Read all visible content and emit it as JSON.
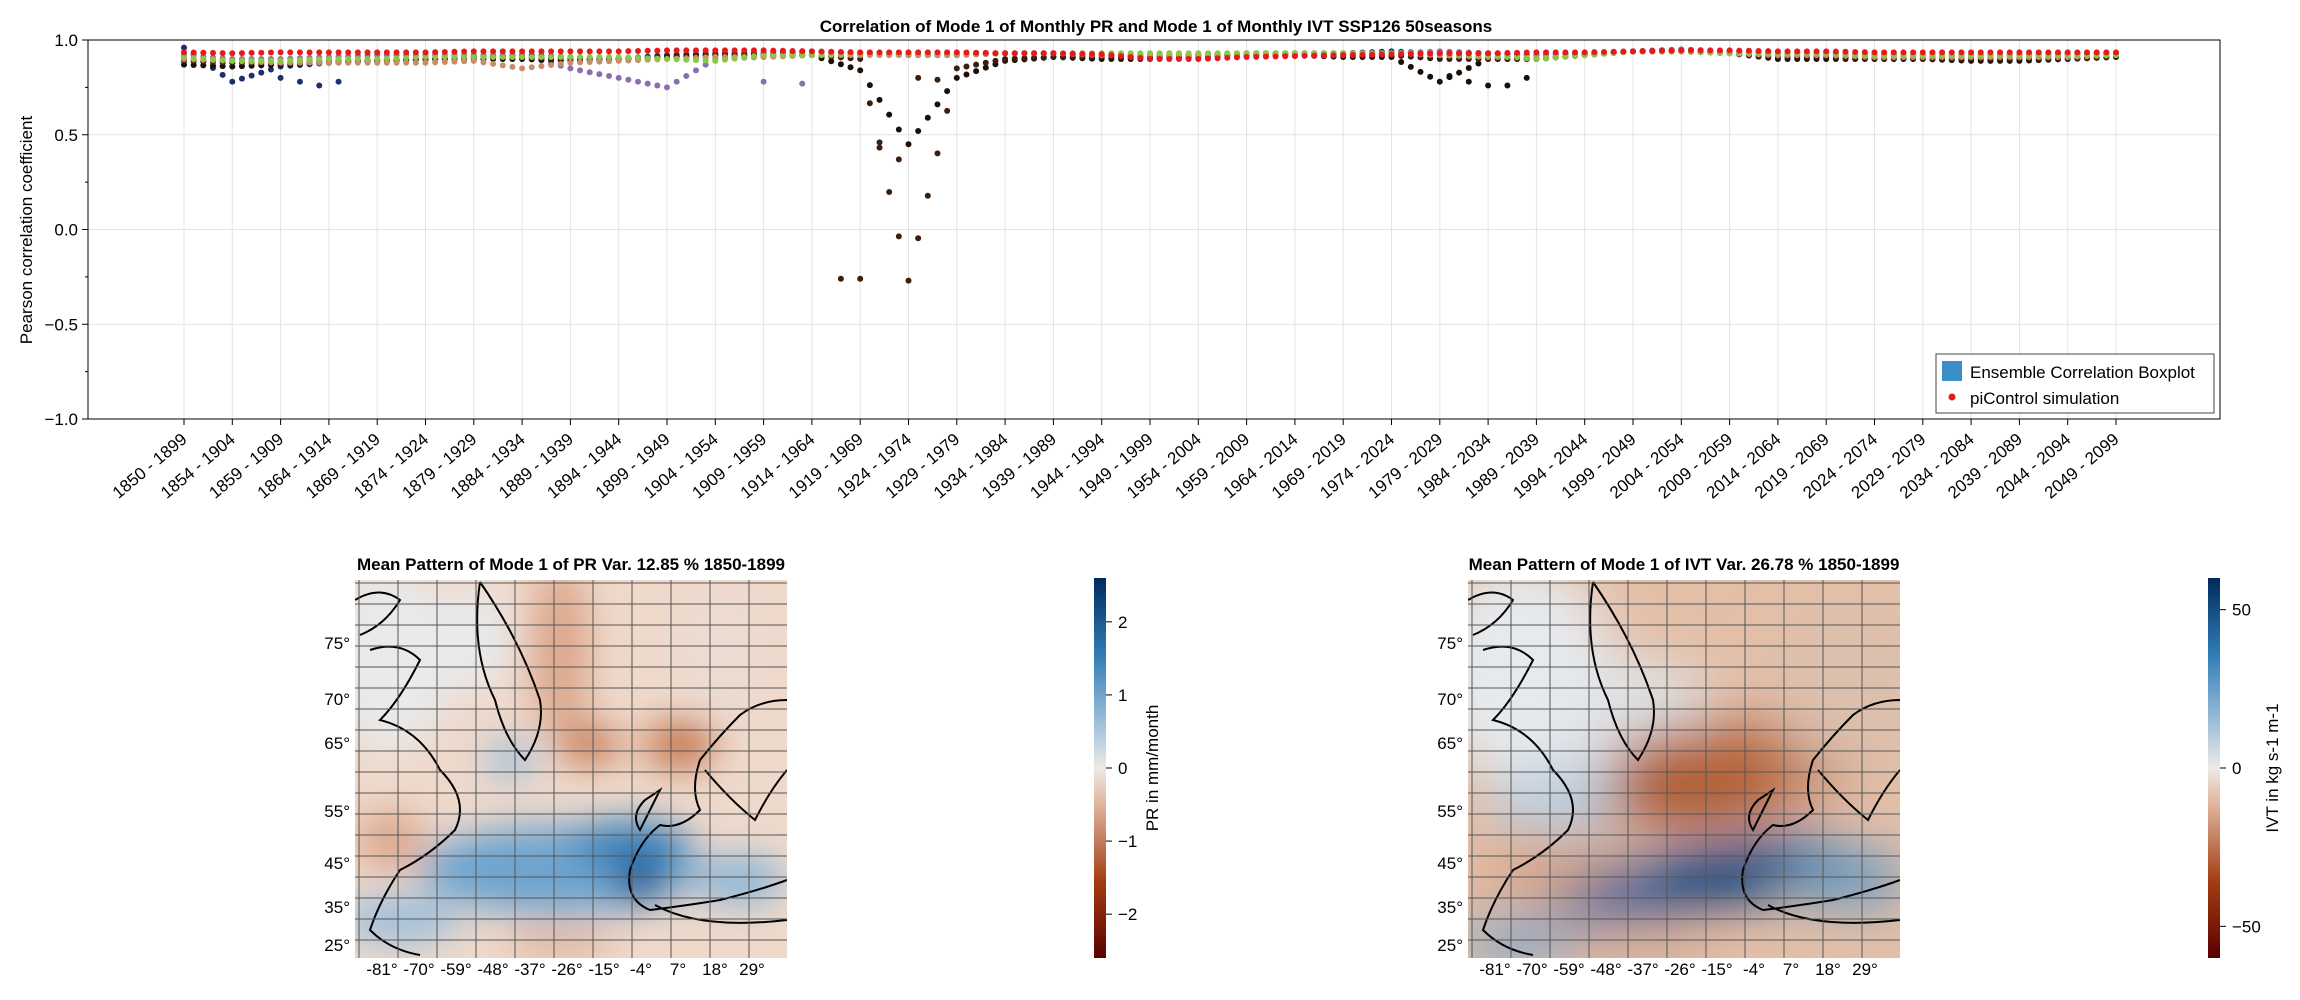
{
  "top_chart": {
    "title": "Correlation of Mode 1 of Monthly PR and Mode 1 of Monthly IVT SSP126 50seasons",
    "ylabel": "Pearson correlation coefficient",
    "legend": {
      "box_label": "Ensemble Correlation Boxplot",
      "dot_label": "piControl simulation",
      "box_color": "#3a8fc8",
      "dot_color": "#e8191c",
      "placement": "bottom-right"
    }
  },
  "maps": [
    {
      "title": "Mean Pattern of Mode 1 of PR Var. 12.85 % 1850-1899",
      "colorbar_label": "PR in mm/month",
      "colorbar_ticks": [
        "2",
        "1",
        "0",
        "−1",
        "−2"
      ],
      "colorbar_range": [
        -2.6,
        2.6
      ]
    },
    {
      "title": "Mean Pattern of Mode 1 of IVT Var. 26.78 % 1850-1899",
      "colorbar_label": "IVT in kg s-1 m-1",
      "colorbar_ticks": [
        "50",
        "0",
        "−50"
      ],
      "colorbar_range": [
        -60,
        60
      ]
    }
  ],
  "map_axes": {
    "lat_ticks": [
      "75°",
      "70°",
      "65°",
      "55°",
      "45°",
      "35°",
      "25°"
    ],
    "lon_ticks": [
      "-81°",
      "-70°",
      "-59°",
      "-48°",
      "-37°",
      "-26°",
      "-15°",
      "-4°",
      "7°",
      "18°",
      "29°"
    ]
  },
  "chart_data": [
    {
      "type": "scatter",
      "title": "Correlation of Mode 1 of Monthly PR and Mode 1 of Monthly IVT SSP126 50seasons",
      "xlabel": "",
      "ylabel": "Pearson correlation coefficient",
      "ylim": [
        -1.0,
        1.0
      ],
      "yticks": [
        "1.0",
        "0.5",
        "0.0",
        "−0.5",
        "−1.0"
      ],
      "grid": true,
      "legend_position": "bottom-right",
      "categories": [
        "1850 - 1899",
        "1854 - 1904",
        "1859 - 1909",
        "1864 - 1914",
        "1869 - 1919",
        "1874 - 1924",
        "1879 - 1929",
        "1884 - 1934",
        "1889 - 1939",
        "1894 - 1944",
        "1899 - 1949",
        "1904 - 1954",
        "1909 - 1959",
        "1914 - 1964",
        "1919 - 1969",
        "1924 - 1974",
        "1929 - 1979",
        "1934 - 1984",
        "1939 - 1989",
        "1944 - 1994",
        "1949 - 1999",
        "1954 - 2004",
        "1959 - 2009",
        "1964 - 2014",
        "1969 - 2019",
        "1974 - 2024",
        "1979 - 2029",
        "1984 - 2034",
        "1989 - 2039",
        "1994 - 2044",
        "1999 - 2049",
        "2004 - 2054",
        "2009 - 2059",
        "2014 - 2064",
        "2019 - 2069",
        "2024 - 2074",
        "2029 - 2079",
        "2034 - 2084",
        "2039 - 2089",
        "2044 - 2094",
        "2049 - 2099"
      ],
      "x_count": 201,
      "series": [
        {
          "name": "piControl simulation",
          "color": "#e8191c",
          "values_note_free": true,
          "values_by_window": [
            0.935,
            0.93,
            0.935,
            0.935,
            0.935,
            0.935,
            0.94,
            0.94,
            0.94,
            0.94,
            0.945,
            0.945,
            0.945,
            0.94,
            0.935,
            0.935,
            0.935,
            0.93,
            0.93,
            0.925,
            0.9,
            0.9,
            0.91,
            0.915,
            0.92,
            0.925,
            0.93,
            0.93,
            0.935,
            0.935,
            0.94,
            0.945,
            0.945,
            0.94,
            0.94,
            0.935,
            0.935,
            0.935,
            0.935,
            0.935,
            0.935
          ]
        }
      ],
      "ensemble_members": [
        {
          "color": "#1f2f6b",
          "values_by_window": [
            0.96,
            0.78,
            0.86,
            0.88,
            0.89,
            0.9,
            0.91,
            0.92,
            0.91,
            0.9,
            0.92,
            0.93,
            0.93,
            0.94,
            0.93,
            0.92,
            0.92,
            0.93,
            0.93,
            0.92,
            0.92,
            0.92,
            0.93,
            0.93,
            0.93,
            0.94,
            0.93,
            0.93,
            0.92,
            0.93,
            0.94,
            0.95,
            0.94,
            0.93,
            0.93,
            0.92,
            0.92,
            0.92,
            0.92,
            0.93,
            0.93
          ]
        },
        {
          "color": "#8a6fae",
          "values_by_window": [
            0.92,
            0.9,
            0.9,
            0.91,
            0.92,
            0.92,
            0.92,
            0.92,
            0.85,
            0.8,
            0.75,
            0.9,
            0.91,
            0.92,
            0.92,
            0.93,
            0.93,
            0.93,
            0.93,
            0.92,
            0.91,
            0.92,
            0.92,
            0.93,
            0.93,
            0.93,
            0.94,
            0.93,
            0.92,
            0.93,
            0.94,
            0.95,
            0.94,
            0.93,
            0.93,
            0.93,
            0.92,
            0.92,
            0.92,
            0.92,
            0.93
          ]
        },
        {
          "color": "#1a1008",
          "values_by_window": [
            0.87,
            0.86,
            0.87,
            0.88,
            0.89,
            0.9,
            0.9,
            0.9,
            0.89,
            0.9,
            0.91,
            0.92,
            0.92,
            0.92,
            0.84,
            0.45,
            0.8,
            0.89,
            0.91,
            0.9,
            0.9,
            0.91,
            0.92,
            0.92,
            0.91,
            0.91,
            0.78,
            0.9,
            0.9,
            0.92,
            0.94,
            0.94,
            0.93,
            0.9,
            0.9,
            0.9,
            0.9,
            0.89,
            0.89,
            0.9,
            0.91
          ]
        },
        {
          "color": "#3d1e0c",
          "values_by_window": [
            0.89,
            0.88,
            0.88,
            0.89,
            0.89,
            0.9,
            0.91,
            0.91,
            0.9,
            0.9,
            0.91,
            0.92,
            0.92,
            0.92,
            0.9,
            -0.27,
            0.85,
            0.9,
            0.91,
            0.91,
            0.91,
            0.92,
            0.92,
            0.92,
            0.92,
            0.92,
            0.9,
            0.9,
            0.9,
            0.92,
            0.94,
            0.94,
            0.93,
            0.91,
            0.91,
            0.9,
            0.9,
            0.9,
            0.9,
            0.9,
            0.91
          ]
        },
        {
          "color": "#c98b6b",
          "values_by_window": [
            0.9,
            0.89,
            0.88,
            0.88,
            0.88,
            0.88,
            0.89,
            0.85,
            0.88,
            0.89,
            0.9,
            0.91,
            0.91,
            0.92,
            0.92,
            0.92,
            0.92,
            0.93,
            0.93,
            0.92,
            0.92,
            0.92,
            0.92,
            0.92,
            0.92,
            0.93,
            0.92,
            0.91,
            0.91,
            0.92,
            0.94,
            0.94,
            0.93,
            0.92,
            0.92,
            0.91,
            0.91,
            0.91,
            0.91,
            0.91,
            0.92
          ]
        },
        {
          "color": "#8dc63f",
          "values_by_window": [
            0.91,
            0.89,
            0.89,
            0.9,
            0.9,
            0.91,
            0.91,
            0.91,
            0.91,
            0.91,
            0.9,
            0.89,
            0.92,
            0.92,
            0.93,
            0.93,
            0.93,
            0.93,
            0.93,
            0.93,
            0.93,
            0.93,
            0.93,
            0.93,
            0.93,
            0.93,
            0.93,
            0.92,
            0.9,
            0.92,
            0.94,
            0.94,
            0.93,
            0.93,
            0.93,
            0.92,
            0.92,
            0.92,
            0.92,
            0.92,
            0.92
          ]
        }
      ]
    },
    {
      "type": "heatmap",
      "title": "Mean Pattern of Mode 1 of PR Var. 12.85 % 1850-1899",
      "colorbar_label": "PR in mm/month",
      "range": [
        -2.6,
        2.6
      ],
      "colormap": "vik (diverging, dark red negative → white → dark blue positive)"
    },
    {
      "type": "heatmap",
      "title": "Mean Pattern of Mode 1 of IVT Var. 26.78 % 1850-1899",
      "colorbar_label": "IVT in kg s-1 m-1",
      "range": [
        -60,
        60
      ],
      "colormap": "vik (diverging, dark red negative → white → dark blue positive)"
    }
  ]
}
